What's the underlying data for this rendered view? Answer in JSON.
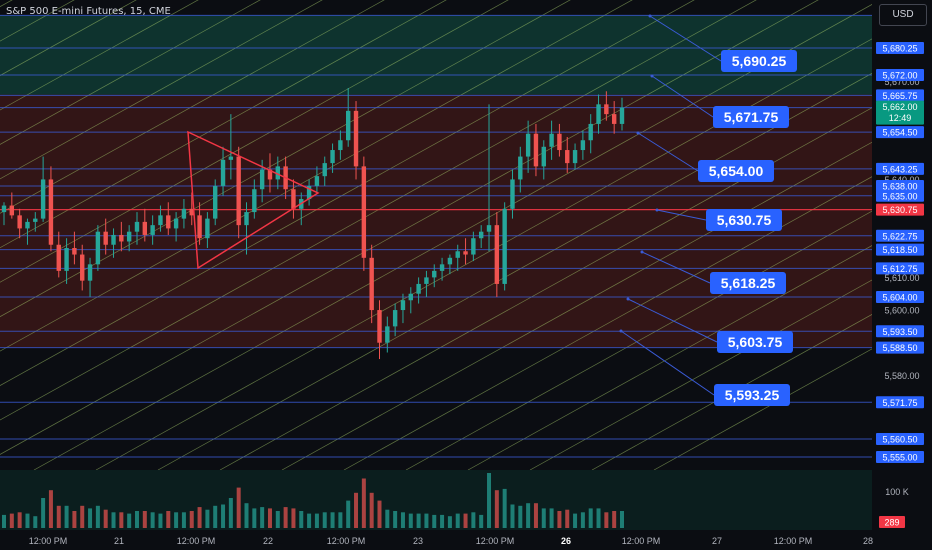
{
  "header": {
    "symbol": "S&P 500 E-mini Futures, 15, CME",
    "currency": "USD"
  },
  "colors": {
    "background": "#0b0d12",
    "zone_green": "#0f3b34",
    "zone_red": "#3a1717",
    "level_line": "#3a5bd6",
    "callout_bg": "#2962ff",
    "channel_line": "#a5c96b",
    "triangle": "#f23645",
    "up_candle": "#26a69a",
    "down_candle": "#ef5350",
    "last_price_bg": "#089981",
    "marker_price_bg": "#f23645"
  },
  "chart_data": {
    "type": "candlestick",
    "title": "S&P 500 E-mini Futures, 15, CME",
    "ylim": [
      5550,
      5705
    ],
    "x_tick_labels": [
      "12:00 PM",
      "21",
      "12:00 PM",
      "22",
      "12:00 PM",
      "23",
      "12:00 PM",
      "26",
      "12:00 PM",
      "27",
      "12:00 PM",
      "28"
    ],
    "y_tick_labels": [
      "5,580.00",
      "5,600.00",
      "5,610.00",
      "5,640.00",
      "5,670.00"
    ],
    "level_tags": [
      {
        "price": 5680.25,
        "label": "5,680.25"
      },
      {
        "price": 5672.0,
        "label": "5,672.00"
      },
      {
        "price": 5665.75,
        "label": "5,665.75"
      },
      {
        "price": 5662.0,
        "label": "5,662.00"
      },
      {
        "price": 5654.5,
        "label": "5,654.50"
      },
      {
        "price": 5643.25,
        "label": "5,643.25"
      },
      {
        "price": 5638.0,
        "label": "5,638.00"
      },
      {
        "price": 5635.0,
        "label": "5,635.00"
      },
      {
        "price": 5630.75,
        "label": "5,630.75"
      },
      {
        "price": 5622.75,
        "label": "5,622.75"
      },
      {
        "price": 5618.5,
        "label": "5,618.50"
      },
      {
        "price": 5612.75,
        "label": "5,612.75"
      },
      {
        "price": 5604.0,
        "label": "5,604.00"
      },
      {
        "price": 5593.5,
        "label": "5,593.50"
      },
      {
        "price": 5588.5,
        "label": "5,588.50"
      },
      {
        "price": 5571.75,
        "label": "5,571.75"
      },
      {
        "price": 5560.5,
        "label": "5,560.50"
      },
      {
        "price": 5555.0,
        "label": "5,555.00"
      }
    ],
    "last_price": {
      "label": "5,662.00",
      "countdown": "12:49"
    },
    "marker_price": {
      "price": 5630.75,
      "label": "5,630.75"
    },
    "callouts": [
      {
        "label": "5,690.25"
      },
      {
        "label": "5,671.75"
      },
      {
        "label": "5,654.00"
      },
      {
        "label": "5,630.75"
      },
      {
        "label": "5,618.25"
      },
      {
        "label": "5,603.75"
      },
      {
        "label": "5,593.25"
      }
    ],
    "zones": [
      {
        "from": 5690.25,
        "to": 5666,
        "color": "green"
      },
      {
        "from": 5666,
        "to": 5630.75,
        "color": "red"
      },
      {
        "from": 5630.75,
        "to": 5618.5,
        "color": "red"
      },
      {
        "from": 5618.5,
        "to": 5588.5,
        "color": "red"
      }
    ],
    "candles": [
      [
        5630,
        5633,
        5626,
        5632
      ],
      [
        5632,
        5636,
        5628,
        5629
      ],
      [
        5629,
        5631,
        5622,
        5625
      ],
      [
        5625,
        5628,
        5620,
        5627
      ],
      [
        5627,
        5630,
        5624,
        5628
      ],
      [
        5628,
        5647,
        5627,
        5640
      ],
      [
        5640,
        5644,
        5618,
        5620
      ],
      [
        5620,
        5624,
        5610,
        5612
      ],
      [
        5612,
        5622,
        5608,
        5619
      ],
      [
        5619,
        5624,
        5614,
        5617
      ],
      [
        5617,
        5620,
        5606,
        5609
      ],
      [
        5609,
        5616,
        5604,
        5614
      ],
      [
        5614,
        5626,
        5612,
        5624
      ],
      [
        5624,
        5628,
        5617,
        5620
      ],
      [
        5620,
        5625,
        5616,
        5623
      ],
      [
        5623,
        5627,
        5618,
        5621
      ],
      [
        5621,
        5626,
        5618,
        5624
      ],
      [
        5624,
        5630,
        5620,
        5627
      ],
      [
        5627,
        5631,
        5621,
        5623
      ],
      [
        5623,
        5629,
        5620,
        5626
      ],
      [
        5626,
        5632,
        5624,
        5629
      ],
      [
        5629,
        5633,
        5623,
        5625
      ],
      [
        5625,
        5630,
        5621,
        5628
      ],
      [
        5628,
        5634,
        5625,
        5631
      ],
      [
        5631,
        5636,
        5626,
        5629
      ],
      [
        5629,
        5633,
        5620,
        5622
      ],
      [
        5622,
        5630,
        5619,
        5628
      ],
      [
        5628,
        5640,
        5626,
        5638
      ],
      [
        5638,
        5650,
        5635,
        5646
      ],
      [
        5646,
        5660,
        5640,
        5647
      ],
      [
        5647,
        5650,
        5622,
        5626
      ],
      [
        5626,
        5633,
        5617,
        5630
      ],
      [
        5630,
        5640,
        5628,
        5637
      ],
      [
        5637,
        5646,
        5633,
        5643
      ],
      [
        5643,
        5648,
        5636,
        5640
      ],
      [
        5640,
        5647,
        5637,
        5644
      ],
      [
        5644,
        5647,
        5634,
        5637
      ],
      [
        5637,
        5640,
        5628,
        5631
      ],
      [
        5631,
        5636,
        5626,
        5634
      ],
      [
        5634,
        5640,
        5632,
        5638
      ],
      [
        5638,
        5644,
        5636,
        5641
      ],
      [
        5641,
        5647,
        5638,
        5645
      ],
      [
        5645,
        5651,
        5642,
        5649
      ],
      [
        5649,
        5655,
        5646,
        5652
      ],
      [
        5652,
        5668,
        5650,
        5661
      ],
      [
        5661,
        5664,
        5640,
        5644
      ],
      [
        5644,
        5647,
        5612,
        5616
      ],
      [
        5616,
        5620,
        5596,
        5600
      ],
      [
        5600,
        5603,
        5585,
        5590
      ],
      [
        5590,
        5598,
        5587,
        5595
      ],
      [
        5595,
        5602,
        5592,
        5600
      ],
      [
        5600,
        5605,
        5596,
        5603
      ],
      [
        5603,
        5607,
        5599,
        5605
      ],
      [
        5605,
        5610,
        5602,
        5608
      ],
      [
        5608,
        5612,
        5604,
        5610
      ],
      [
        5610,
        5614,
        5607,
        5612
      ],
      [
        5612,
        5616,
        5609,
        5614
      ],
      [
        5614,
        5617,
        5611,
        5616
      ],
      [
        5616,
        5620,
        5612,
        5618
      ],
      [
        5618,
        5622,
        5614,
        5617
      ],
      [
        5617,
        5624,
        5615,
        5622
      ],
      [
        5622,
        5626,
        5619,
        5624
      ],
      [
        5624,
        5663,
        5618,
        5626
      ],
      [
        5626,
        5630,
        5604,
        5608
      ],
      [
        5608,
        5633,
        5606,
        5631
      ],
      [
        5631,
        5643,
        5628,
        5640
      ],
      [
        5640,
        5650,
        5636,
        5647
      ],
      [
        5647,
        5658,
        5642,
        5654
      ],
      [
        5654,
        5657,
        5641,
        5644
      ],
      [
        5644,
        5652,
        5640,
        5650
      ],
      [
        5650,
        5658,
        5646,
        5654
      ],
      [
        5654,
        5657,
        5647,
        5649
      ],
      [
        5649,
        5653,
        5642,
        5645
      ],
      [
        5645,
        5651,
        5643,
        5649
      ],
      [
        5649,
        5655,
        5646,
        5652
      ],
      [
        5652,
        5660,
        5648,
        5657
      ],
      [
        5657,
        5666,
        5654,
        5663
      ],
      [
        5663,
        5667,
        5658,
        5660
      ],
      [
        5660,
        5664,
        5654,
        5657
      ],
      [
        5657,
        5665,
        5655,
        5662
      ]
    ],
    "volume_axis_label": "100 K",
    "volume_last": "289"
  }
}
